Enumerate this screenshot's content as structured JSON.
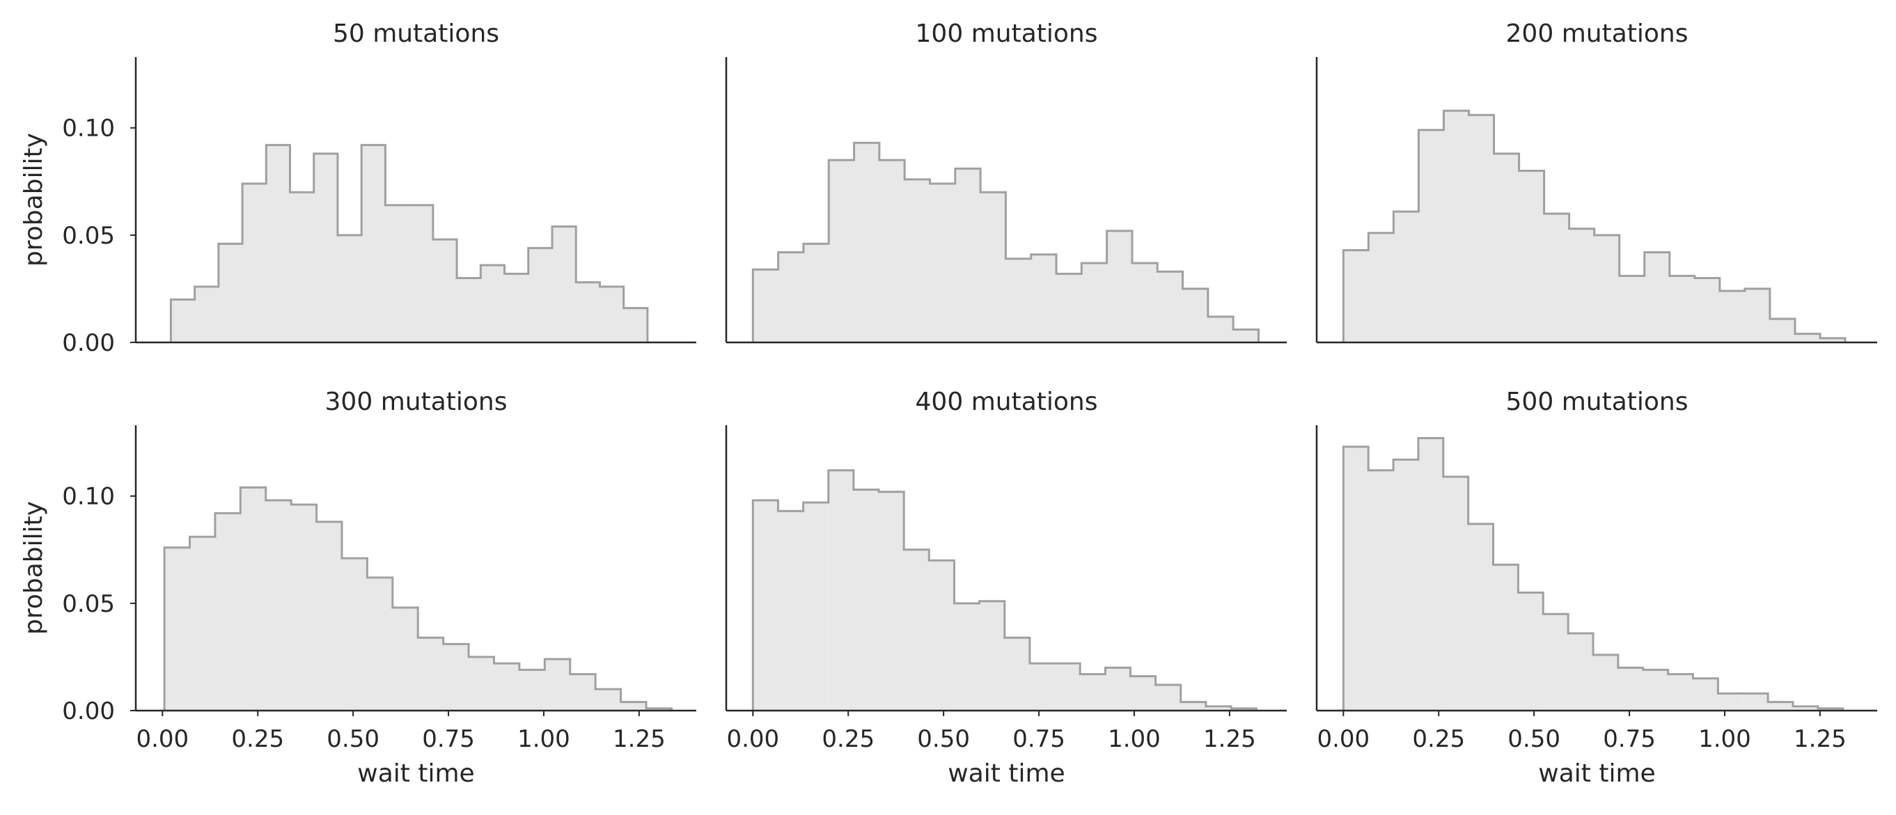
{
  "chart_data": {
    "type": "histogram-grid",
    "xlabel": "wait time",
    "ylabel": "probability",
    "xlim": [
      -0.07,
      1.4
    ],
    "ylim": [
      0,
      0.133
    ],
    "xticks": [
      "0.00",
      "0.25",
      "0.50",
      "0.75",
      "1.00",
      "1.25"
    ],
    "yticks": [
      "0.00",
      "0.05",
      "0.10"
    ],
    "grid": false,
    "colors": {
      "fill": "#e8e8e8",
      "edge": "#a0a0a0",
      "axis": "#262626"
    },
    "panels": [
      {
        "title": "50 mutations",
        "bin_start": 0.022,
        "bin_width": 0.0625,
        "values": [
          0.02,
          0.026,
          0.046,
          0.074,
          0.092,
          0.07,
          0.088,
          0.05,
          0.092,
          0.064,
          0.064,
          0.048,
          0.03,
          0.036,
          0.032,
          0.044,
          0.054,
          0.028,
          0.026,
          0.016
        ]
      },
      {
        "title": "100 mutations",
        "bin_start": 0.0,
        "bin_width": 0.0663,
        "values": [
          0.034,
          0.042,
          0.046,
          0.085,
          0.093,
          0.085,
          0.076,
          0.074,
          0.081,
          0.07,
          0.039,
          0.041,
          0.032,
          0.037,
          0.052,
          0.037,
          0.033,
          0.025,
          0.012,
          0.006
        ]
      },
      {
        "title": "200 mutations",
        "bin_start": 0.0,
        "bin_width": 0.0658,
        "values": [
          0.043,
          0.051,
          0.061,
          0.099,
          0.108,
          0.106,
          0.088,
          0.08,
          0.06,
          0.053,
          0.05,
          0.031,
          0.042,
          0.031,
          0.03,
          0.024,
          0.025,
          0.011,
          0.004,
          0.002
        ]
      },
      {
        "title": "300 mutations",
        "bin_start": 0.005,
        "bin_width": 0.0665,
        "values": [
          0.076,
          0.081,
          0.092,
          0.104,
          0.098,
          0.096,
          0.088,
          0.071,
          0.062,
          0.048,
          0.034,
          0.031,
          0.025,
          0.022,
          0.019,
          0.024,
          0.017,
          0.01,
          0.004,
          0.001
        ]
      },
      {
        "title": "400 mutations",
        "bin_start": 0.0,
        "bin_width": 0.066,
        "values": [
          0.098,
          0.093,
          0.097,
          0.112,
          0.103,
          0.102,
          0.075,
          0.07,
          0.05,
          0.051,
          0.034,
          0.022,
          0.022,
          0.017,
          0.02,
          0.016,
          0.012,
          0.004,
          0.002,
          0.001
        ]
      },
      {
        "title": "500 mutations",
        "bin_start": 0.0,
        "bin_width": 0.0655,
        "values": [
          0.123,
          0.112,
          0.117,
          0.127,
          0.109,
          0.087,
          0.068,
          0.055,
          0.045,
          0.036,
          0.026,
          0.02,
          0.019,
          0.017,
          0.015,
          0.008,
          0.008,
          0.004,
          0.002,
          0.001
        ]
      }
    ]
  }
}
